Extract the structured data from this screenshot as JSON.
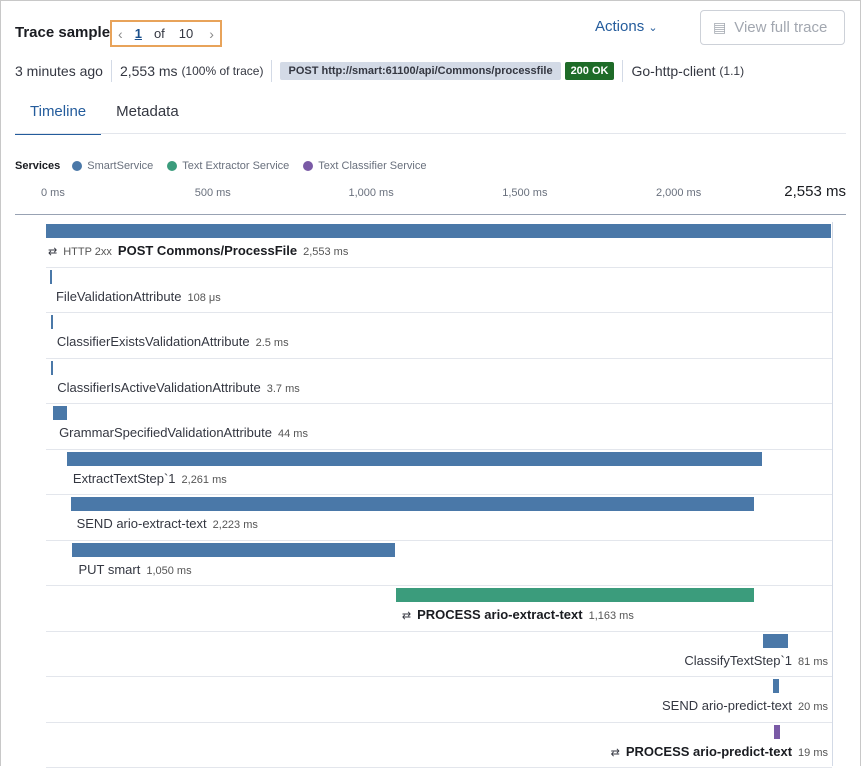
{
  "header": {
    "title": "Trace sample",
    "current": "1",
    "of": "of",
    "total": "10",
    "actions": "Actions",
    "view_full_trace": "View full trace"
  },
  "meta": {
    "age": "3 minutes ago",
    "duration": "2,553 ms",
    "percent": "(100% of trace)",
    "request": "POST http://smart:61100/api/Commons/processfile",
    "status": "200 OK",
    "user_agent": "Go-http-client",
    "ua_version": "(1.1)"
  },
  "tabs": [
    {
      "label": "Timeline",
      "active": true
    },
    {
      "label": "Metadata",
      "active": false
    }
  ],
  "legend": {
    "label": "Services",
    "items": [
      {
        "name": "SmartService",
        "color": "#4a78a8"
      },
      {
        "name": "Text Extractor Service",
        "color": "#3b9c7c"
      },
      {
        "name": "Text Classifier Service",
        "color": "#7a5aa6"
      }
    ]
  },
  "axis": {
    "ticks": [
      "0 ms",
      "500 ms",
      "1,000 ms",
      "1,500 ms",
      "2,000 ms"
    ],
    "tick_values": [
      0,
      500,
      1000,
      1500,
      2000
    ],
    "end": "2,553 ms",
    "max_ms": 2553
  },
  "spans": [
    {
      "name": "POST Commons/ProcessFile",
      "prefix": "HTTP 2xx",
      "duration": "2,553 ms",
      "start_ms": 0,
      "dur_ms": 2553,
      "service": 0,
      "bold": true,
      "icon": "exit-span-icon"
    },
    {
      "name": "FileValidationAttribute",
      "duration": "108 μs",
      "start_ms": 13,
      "dur_ms": 0.108,
      "service": 0
    },
    {
      "name": "ClassifierExistsValidationAttribute",
      "duration": "2.5 ms",
      "start_ms": 16,
      "dur_ms": 2.5,
      "service": 0
    },
    {
      "name": "ClassifierIsActiveValidationAttribute",
      "duration": "3.7 ms",
      "start_ms": 17,
      "dur_ms": 3.7,
      "service": 0
    },
    {
      "name": "GrammarSpecifiedValidationAttribute",
      "duration": "44 ms",
      "start_ms": 23,
      "dur_ms": 44,
      "service": 0
    },
    {
      "name": "ExtractTextStep`1",
      "duration": "2,261 ms",
      "start_ms": 68,
      "dur_ms": 2261,
      "service": 0
    },
    {
      "name": "SEND ario-extract-text",
      "duration": "2,223 ms",
      "start_ms": 80,
      "dur_ms": 2223,
      "service": 0
    },
    {
      "name": "PUT smart",
      "duration": "1,050 ms",
      "start_ms": 86,
      "dur_ms": 1050,
      "service": 0
    },
    {
      "name": "PROCESS ario-extract-text",
      "duration": "1,163 ms",
      "start_ms": 1138,
      "dur_ms": 1163,
      "service": 1,
      "bold": true,
      "icon": "exit-span-icon"
    },
    {
      "name": "ClassifyTextStep`1",
      "duration": "81 ms",
      "start_ms": 2332,
      "dur_ms": 81,
      "service": 0,
      "right": true
    },
    {
      "name": "SEND ario-predict-text",
      "duration": "20 ms",
      "start_ms": 2364,
      "dur_ms": 20,
      "service": 0,
      "right": true
    },
    {
      "name": "PROCESS ario-predict-text",
      "duration": "19 ms",
      "start_ms": 2367,
      "dur_ms": 19,
      "service": 2,
      "bold": true,
      "right": true,
      "icon": "exit-span-icon"
    }
  ]
}
